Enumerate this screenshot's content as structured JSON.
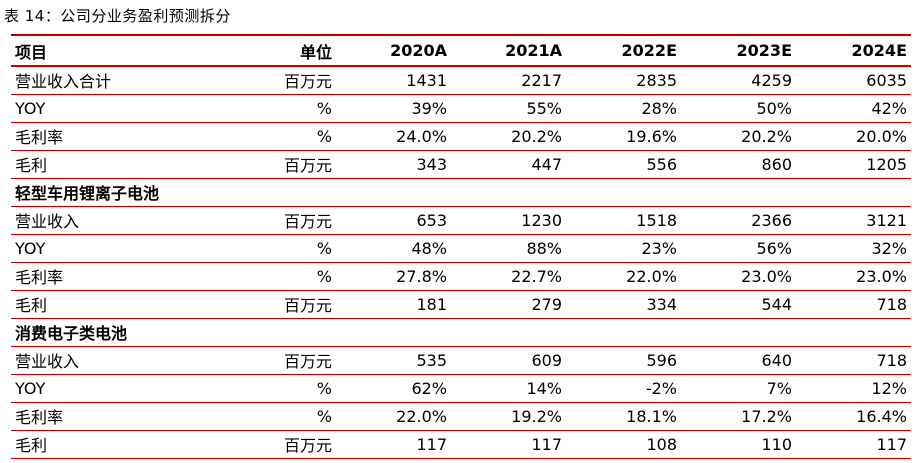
{
  "caption": "表 14：公司分业务盈利预测拆分",
  "headers": [
    "项目",
    "单位",
    "2020A",
    "2021A",
    "2022E",
    "2023E",
    "2024E"
  ],
  "rows": [
    {
      "type": "data",
      "item": "营业收入合计",
      "unit": "百万元",
      "values": [
        "1431",
        "2217",
        "2835",
        "4259",
        "6035"
      ]
    },
    {
      "type": "data",
      "item": "YOY",
      "unit": "%",
      "values": [
        "39%",
        "55%",
        "28%",
        "50%",
        "42%"
      ]
    },
    {
      "type": "data",
      "item": "毛利率",
      "unit": "%",
      "values": [
        "24.0%",
        "20.2%",
        "19.6%",
        "20.2%",
        "20.0%"
      ]
    },
    {
      "type": "data",
      "item": "毛利",
      "unit": "百万元",
      "values": [
        "343",
        "447",
        "556",
        "860",
        "1205"
      ]
    },
    {
      "type": "section",
      "item": "轻型车用锂离子电池"
    },
    {
      "type": "data",
      "item": "营业收入",
      "unit": "百万元",
      "values": [
        "653",
        "1230",
        "1518",
        "2366",
        "3121"
      ]
    },
    {
      "type": "data",
      "item": "YOY",
      "unit": "%",
      "values": [
        "48%",
        "88%",
        "23%",
        "56%",
        "32%"
      ]
    },
    {
      "type": "data",
      "item": "毛利率",
      "unit": "%",
      "values": [
        "27.8%",
        "22.7%",
        "22.0%",
        "23.0%",
        "23.0%"
      ]
    },
    {
      "type": "data",
      "item": "毛利",
      "unit": "百万元",
      "values": [
        "181",
        "279",
        "334",
        "544",
        "718"
      ]
    },
    {
      "type": "section",
      "item": "消费电子类电池"
    },
    {
      "type": "data",
      "item": "营业收入",
      "unit": "百万元",
      "values": [
        "535",
        "609",
        "596",
        "640",
        "718"
      ]
    },
    {
      "type": "data",
      "item": "YOY",
      "unit": "%",
      "values": [
        "62%",
        "14%",
        "-2%",
        "7%",
        "12%"
      ]
    },
    {
      "type": "data",
      "item": "毛利率",
      "unit": "%",
      "values": [
        "22.0%",
        "19.2%",
        "18.1%",
        "17.2%",
        "16.4%"
      ]
    },
    {
      "type": "data",
      "item": "毛利",
      "unit": "百万元",
      "values": [
        "117",
        "117",
        "108",
        "110",
        "117"
      ]
    }
  ]
}
